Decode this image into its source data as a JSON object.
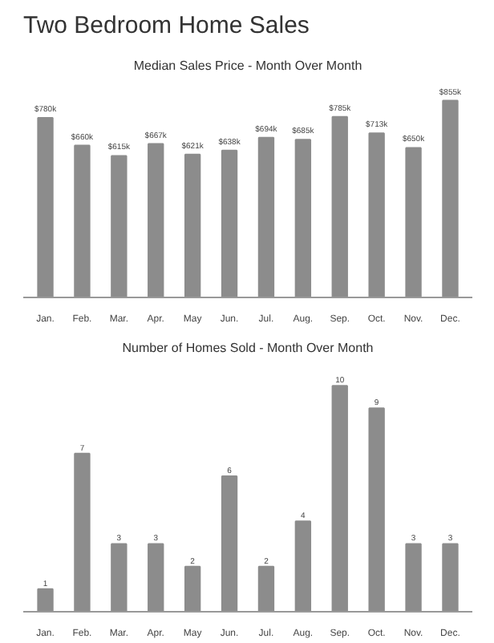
{
  "chart_data": [
    {
      "type": "bar",
      "title": "Two Bedroom Home Sales",
      "subtitle": "Median Sales Price - Month Over Month",
      "categories": [
        "Jan.",
        "Feb.",
        "Mar.",
        "Apr.",
        "May",
        "Jun.",
        "Jul.",
        "Aug.",
        "Sep.",
        "Oct.",
        "Nov.",
        "Dec."
      ],
      "values": [
        780,
        660,
        615,
        667,
        621,
        638,
        694,
        685,
        785,
        713,
        650,
        855
      ],
      "value_labels": [
        "$780k",
        "$660k",
        "$615k",
        "$667k",
        "$621k",
        "$638k",
        "$694k",
        "$685k",
        "$785k",
        "$713k",
        "$650k",
        "$855k"
      ],
      "color": "#8c8c8c",
      "grid": false
    },
    {
      "type": "bar",
      "title": "Number of Homes Sold - Month Over Month",
      "categories": [
        "Jan.",
        "Feb.",
        "Mar.",
        "Apr.",
        "May",
        "Jun.",
        "Jul.",
        "Aug.",
        "Sep.",
        "Oct.",
        "Nov.",
        "Dec."
      ],
      "values": [
        1,
        7,
        3,
        3,
        2,
        6,
        2,
        4,
        10,
        9,
        3,
        3
      ],
      "data_labels": true,
      "color": "#8c8c8c",
      "grid": false
    }
  ]
}
